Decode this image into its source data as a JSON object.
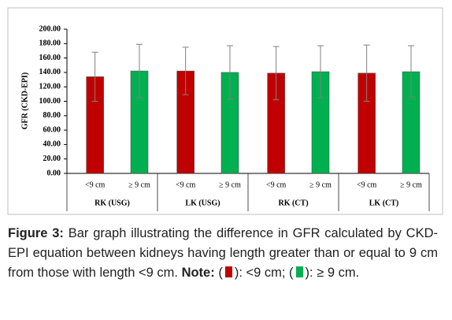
{
  "chart_data": {
    "type": "bar",
    "ylabel": "GFR (CKD-EPI)",
    "categories": [
      "RK (USG)",
      "LK (USG)",
      "RK (CT)",
      "LK (CT)"
    ],
    "series": [
      {
        "name": "<9 cm",
        "color": "#c00000",
        "values": [
          134,
          142,
          139,
          139
        ],
        "errors": [
          34,
          33,
          37,
          39
        ]
      },
      {
        "name": "≥ 9 cm",
        "color": "#00b050",
        "values": [
          142,
          140,
          141,
          141
        ],
        "errors": [
          37,
          37,
          36,
          36
        ]
      }
    ],
    "ylim": [
      0,
      200
    ],
    "yticks": [
      {
        "value": 0,
        "label": "0.00"
      },
      {
        "value": 20,
        "label": "20.00"
      },
      {
        "value": 40,
        "label": "40.00"
      },
      {
        "value": 60,
        "label": "60.00"
      },
      {
        "value": 80,
        "label": "80.00"
      },
      {
        "value": 100,
        "label": "100.00"
      },
      {
        "value": 120,
        "label": "120.00"
      },
      {
        "value": 140,
        "label": "140.00"
      },
      {
        "value": 160,
        "label": "160.00"
      },
      {
        "value": 180,
        "label": "180.00"
      },
      {
        "value": 200,
        "label": "200.00"
      }
    ],
    "grid": false
  },
  "caption": {
    "label": "Figure 3:",
    "text": " Bar graph illustrating the difference in GFR calculated by CKD-EPI equation between kidneys having length greater than or equal to 9 cm from those with length <9 cm. ",
    "note_label": "Note:",
    "note": [
      " (",
      "): <9 cm; (",
      "): ≥ 9 cm."
    ]
  }
}
